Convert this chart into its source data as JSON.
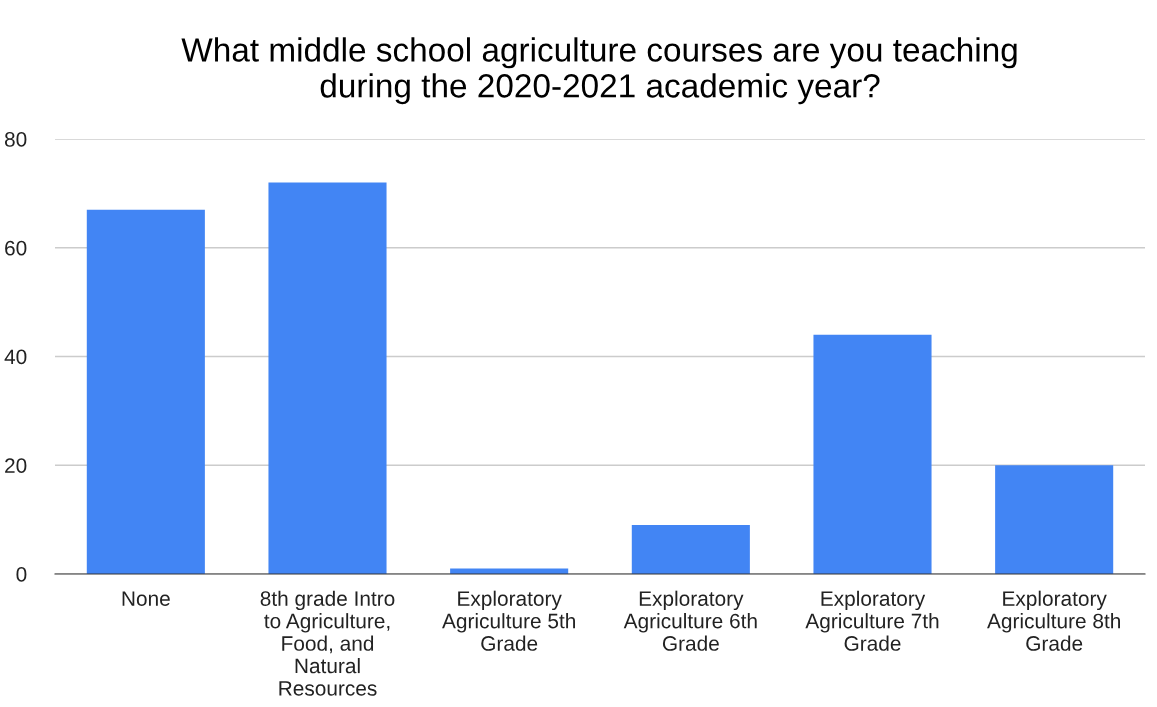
{
  "chart_data": {
    "type": "bar",
    "title": "What middle school agriculture courses are you teaching\nduring the 2020-2021 academic year?",
    "categories": [
      "None",
      "8th grade Intro\nto Agriculture,\nFood, and\nNatural\nResources",
      "Exploratory\nAgriculture 5th\nGrade",
      "Exploratory\nAgriculture 6th\nGrade",
      "Exploratory\nAgriculture 7th\nGrade",
      "Exploratory\nAgriculture 8th\nGrade"
    ],
    "values": [
      67,
      72,
      1,
      9,
      44,
      20
    ],
    "color": "#4285f4",
    "ylim": [
      0,
      80
    ],
    "yticks": [
      0,
      20,
      40,
      60,
      80
    ],
    "grid": "y"
  }
}
